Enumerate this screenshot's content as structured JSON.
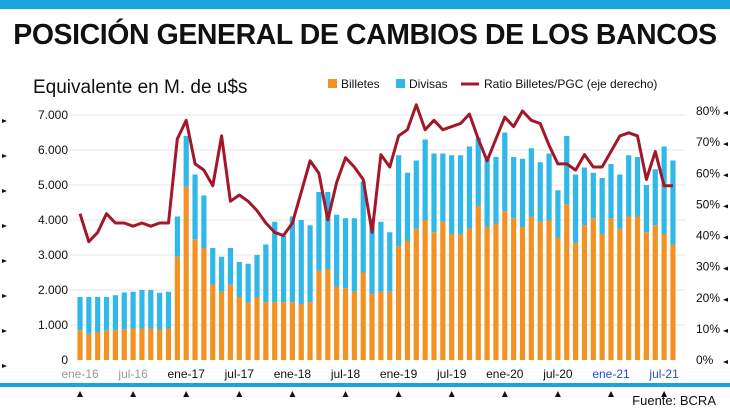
{
  "header": {
    "title": "POSICIÓN GENERAL DE CAMBIOS DE LOS BANCOS"
  },
  "footer": {
    "source": "Fuente: BCRA"
  },
  "colors": {
    "billetes": "#f39222",
    "divisas": "#2fb8e8",
    "ratio": "#a4162a",
    "accent_bar": "#1aa3dd",
    "highlight_label": "#1f4fd6",
    "muted_label": "#9a9a9a"
  },
  "chart_data": {
    "type": "bar",
    "subtitle": "Equivalente en M. de u$s",
    "y_left": {
      "min": 0,
      "max": 7000,
      "step": 1000,
      "ticks": [
        "0",
        "1.000",
        "2.000",
        "3.000",
        "4.000",
        "5.000",
        "6.000",
        "7.000"
      ]
    },
    "y_right": {
      "min": 0,
      "max": 80,
      "step": 10,
      "ticks": [
        "0%",
        "10%",
        "20%",
        "30%",
        "40%",
        "50%",
        "60%",
        "70%",
        "80%"
      ]
    },
    "x_labels": [
      {
        "text": "ene-16",
        "index": 0,
        "style": "muted"
      },
      {
        "text": "jul-16",
        "index": 6,
        "style": "muted"
      },
      {
        "text": "ene-17",
        "index": 12,
        "style": "normal"
      },
      {
        "text": "jul-17",
        "index": 18,
        "style": "normal"
      },
      {
        "text": "ene-18",
        "index": 24,
        "style": "normal"
      },
      {
        "text": "jul-18",
        "index": 30,
        "style": "normal"
      },
      {
        "text": "ene-19",
        "index": 36,
        "style": "normal"
      },
      {
        "text": "jul-19",
        "index": 42,
        "style": "normal"
      },
      {
        "text": "ene-20",
        "index": 48,
        "style": "normal"
      },
      {
        "text": "jul-20",
        "index": 54,
        "style": "normal"
      },
      {
        "text": "ene-21",
        "index": 60,
        "style": "highlight"
      },
      {
        "text": "jul-21",
        "index": 66,
        "style": "highlight"
      }
    ],
    "legend": [
      "Billetes",
      "Divisas",
      "Ratio Billetes/PGC (eje derecho)"
    ],
    "series": [
      {
        "name": "Billetes",
        "values": [
          850,
          750,
          800,
          850,
          850,
          880,
          900,
          900,
          900,
          870,
          900,
          2950,
          4950,
          3450,
          3200,
          2150,
          1950,
          2150,
          1800,
          1650,
          1800,
          1650,
          1650,
          1650,
          1650,
          1600,
          1650,
          2550,
          2600,
          2100,
          2050,
          1950,
          2500,
          1900,
          1950,
          1950,
          3250,
          3400,
          3750,
          4000,
          3650,
          3950,
          3600,
          3600,
          3750,
          4400,
          3800,
          3900,
          4250,
          4050,
          3800,
          4100,
          3950,
          4000,
          3500,
          4450,
          3350,
          3850,
          4050,
          3600,
          4050,
          3750,
          4100,
          4100,
          3650,
          3850,
          3600,
          3300
        ]
      },
      {
        "name": "Divisas",
        "values": [
          950,
          1050,
          1000,
          950,
          1000,
          1050,
          1050,
          1100,
          1100,
          1050,
          1050,
          1150,
          1450,
          1850,
          1500,
          1050,
          1000,
          1050,
          1000,
          1100,
          1200,
          1650,
          2300,
          1900,
          2450,
          2400,
          2200,
          2250,
          2200,
          2050,
          2000,
          2100,
          2600,
          2150,
          2000,
          1700,
          2600,
          1950,
          1950,
          2300,
          2250,
          1950,
          2250,
          2250,
          2350,
          1950,
          1950,
          1900,
          2250,
          1750,
          1950,
          1950,
          1700,
          1900,
          1350,
          1950,
          1950,
          1650,
          1300,
          1600,
          1550,
          1550,
          1750,
          1700,
          1350,
          1600,
          2500,
          2400
        ]
      },
      {
        "name": "Ratio Billetes/PGC (eje derecho)",
        "values": [
          47,
          38,
          41,
          47,
          44,
          44,
          43,
          44,
          43,
          44,
          44,
          71,
          77,
          63,
          61,
          56,
          72,
          51,
          53,
          51,
          48,
          44,
          41,
          40,
          44,
          54,
          64,
          60,
          45,
          57,
          65,
          62,
          58,
          41,
          66,
          62,
          72,
          74,
          82,
          74,
          77,
          74,
          75,
          76,
          79,
          71,
          64,
          71,
          78,
          75,
          80,
          77,
          76,
          69,
          63,
          63,
          61,
          66,
          62,
          62,
          67,
          72,
          73,
          72,
          58,
          67,
          56,
          56
        ]
      }
    ]
  }
}
